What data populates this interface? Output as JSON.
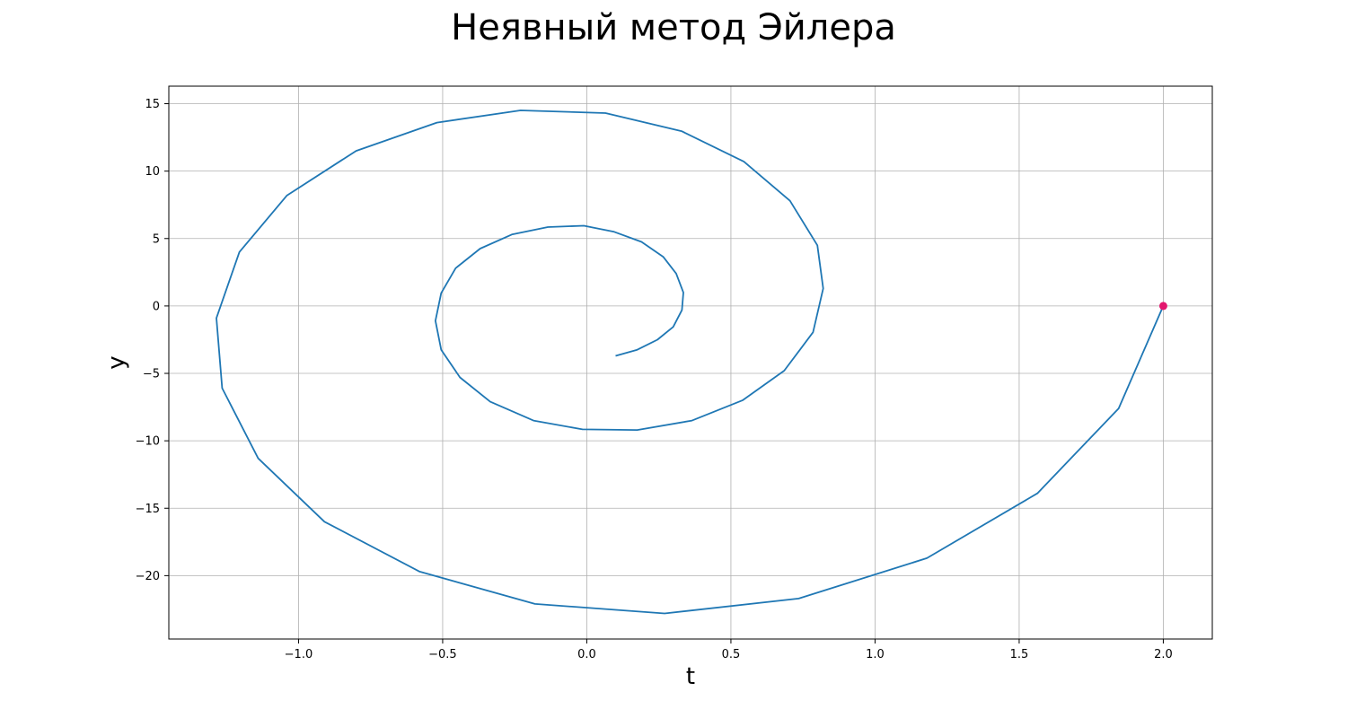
{
  "chart_data": {
    "type": "line",
    "title": "Неявный метод Эйлера",
    "xlabel": "t",
    "ylabel": "y",
    "xlim": [
      -1.45,
      2.17
    ],
    "ylim": [
      -24.7,
      16.3
    ],
    "grid": true,
    "legend": "none",
    "x_ticks": [
      -1.0,
      -0.5,
      0.0,
      0.5,
      1.0,
      1.5,
      2.0
    ],
    "x_tick_labels": [
      "−1.0",
      "−0.5",
      "0.0",
      "0.5",
      "1.0",
      "1.5",
      "2.0"
    ],
    "y_ticks": [
      15,
      10,
      5,
      0,
      -5,
      -10,
      -15,
      -20
    ],
    "y_tick_labels": [
      "15",
      "10",
      "5",
      "0",
      "−5",
      "−10",
      "−15",
      "−20"
    ],
    "colors": {
      "line": "#1f77b4",
      "marker": "#e3176e",
      "grid": "#b0b0b0"
    },
    "series": [
      {
        "x": [
          2.0,
          1.845,
          1.563,
          1.18,
          0.735,
          0.27,
          -0.18,
          -0.58,
          -0.91,
          -1.14,
          -1.265,
          -1.285,
          -1.205,
          -1.04,
          -0.8,
          -0.52,
          -0.23,
          0.065,
          0.33,
          0.545,
          0.705,
          0.8,
          0.82,
          0.785,
          0.685,
          0.54,
          0.365,
          0.175,
          -0.015,
          -0.185,
          -0.335,
          -0.44,
          -0.505,
          -0.525,
          -0.505,
          -0.455,
          -0.37,
          -0.26,
          -0.135,
          -0.01,
          0.095,
          0.19,
          0.265,
          0.31,
          0.335,
          0.33,
          0.3,
          0.245,
          0.175,
          0.1
        ],
        "y": [
          0,
          -7.6,
          -13.9,
          -18.7,
          -21.7,
          -22.8,
          -22.1,
          -19.7,
          -16.0,
          -11.3,
          -6.1,
          -0.9,
          4.0,
          8.2,
          11.5,
          13.6,
          14.5,
          14.3,
          12.95,
          10.7,
          7.8,
          4.5,
          1.3,
          -1.95,
          -4.8,
          -7.0,
          -8.5,
          -9.2,
          -9.15,
          -8.5,
          -7.1,
          -5.3,
          -3.25,
          -1.1,
          0.95,
          2.8,
          4.25,
          5.3,
          5.85,
          5.95,
          5.5,
          4.75,
          3.65,
          2.4,
          1.0,
          -0.3,
          -1.55,
          -2.5,
          -3.25,
          -3.7
        ]
      }
    ],
    "markers": [
      {
        "x": 2.0,
        "y": 0
      }
    ]
  }
}
